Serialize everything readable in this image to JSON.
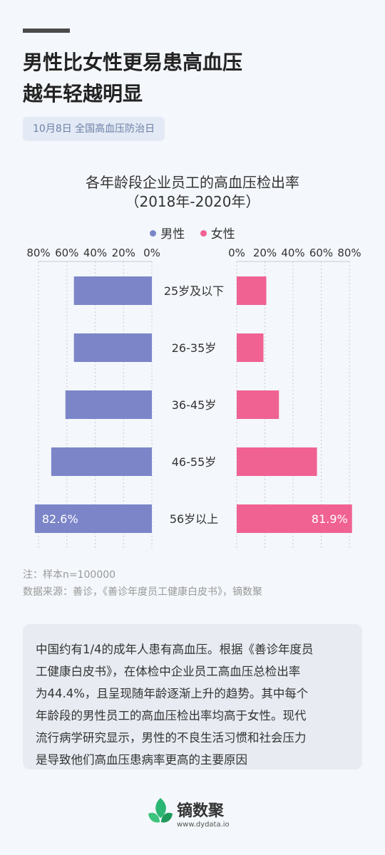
{
  "header": {
    "title_line1": "男性比女性更易患高血压",
    "title_line2": "越年轻越明显",
    "tag": "10月8日 全国高血压防治日"
  },
  "chart_data": {
    "type": "bar",
    "title": "各年龄段企业员工的高血压检出率",
    "subtitle": "（2018年-2020年）",
    "categories": [
      "25岁及以下",
      "26-35岁",
      "36-45岁",
      "46-55岁",
      "56岁以上"
    ],
    "series": [
      {
        "name": "男性",
        "values": [
          55,
          55,
          61,
          71,
          82.6
        ],
        "color": "#7b85c8"
      },
      {
        "name": "女性",
        "values": [
          21,
          19,
          30,
          57,
          81.9
        ],
        "color": "#f06292"
      }
    ],
    "data_labels": {
      "男性": {
        "4": "82.6%"
      },
      "女性": {
        "4": "81.9%"
      }
    },
    "left_ticks": [
      "80%",
      "60%",
      "40%",
      "20%",
      "0%"
    ],
    "right_ticks": [
      "0%",
      "20%",
      "40%",
      "60%",
      "80%"
    ],
    "xlim": [
      0,
      80
    ],
    "legend": "top-center"
  },
  "notes": {
    "sample": "注：样本n=100000",
    "source": "数据来源：善诊，《善诊年度员工健康白皮书》，镝数聚"
  },
  "description": {
    "lines": [
      "中国约有1/4的成年人患有高血压。根据《善诊年度员",
      "工健康白皮书》，在体检中企业员工高血压总检出率",
      "为44.4%，且呈现随年龄逐渐上升的趋势。其中每个",
      "年龄段的男性员工的高血压检出率均高于女性。现代",
      "流行病学研究显示，男性的不良生活习惯和社会压力",
      "是导致他们高血压患病率更高的主要原因"
    ]
  },
  "brand": {
    "name": "镝数聚",
    "url": "www.dydata.io",
    "logo_colors": [
      "#2bb673",
      "#3cc37c",
      "#1e9a5c"
    ]
  }
}
